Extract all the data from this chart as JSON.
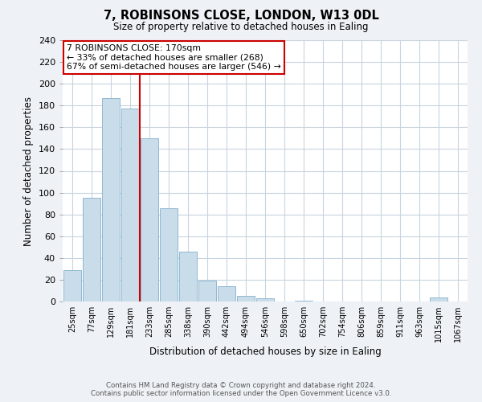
{
  "title": "7, ROBINSONS CLOSE, LONDON, W13 0DL",
  "subtitle": "Size of property relative to detached houses in Ealing",
  "xlabel": "Distribution of detached houses by size in Ealing",
  "ylabel": "Number of detached properties",
  "bin_labels": [
    "25sqm",
    "77sqm",
    "129sqm",
    "181sqm",
    "233sqm",
    "285sqm",
    "338sqm",
    "390sqm",
    "442sqm",
    "494sqm",
    "546sqm",
    "598sqm",
    "650sqm",
    "702sqm",
    "754sqm",
    "806sqm",
    "859sqm",
    "911sqm",
    "963sqm",
    "1015sqm",
    "1067sqm"
  ],
  "bar_values": [
    29,
    95,
    187,
    177,
    150,
    86,
    46,
    19,
    14,
    5,
    3,
    0,
    1,
    0,
    0,
    0,
    0,
    0,
    0,
    4,
    0
  ],
  "bar_color": "#c9dcea",
  "bar_edgecolor": "#90b8d0",
  "vline_x": 3.5,
  "vline_color": "#cc0000",
  "annotation_title": "7 ROBINSONS CLOSE: 170sqm",
  "annotation_line1": "← 33% of detached houses are smaller (268)",
  "annotation_line2": "67% of semi-detached houses are larger (546) →",
  "annotation_box_edgecolor": "#cc0000",
  "ylim": [
    0,
    240
  ],
  "yticks": [
    0,
    20,
    40,
    60,
    80,
    100,
    120,
    140,
    160,
    180,
    200,
    220,
    240
  ],
  "footer_line1": "Contains HM Land Registry data © Crown copyright and database right 2024.",
  "footer_line2": "Contains public sector information licensed under the Open Government Licence v3.0.",
  "background_color": "#eef2f6",
  "plot_bg_color": "#ffffff",
  "grid_color": "#c8d4e0"
}
